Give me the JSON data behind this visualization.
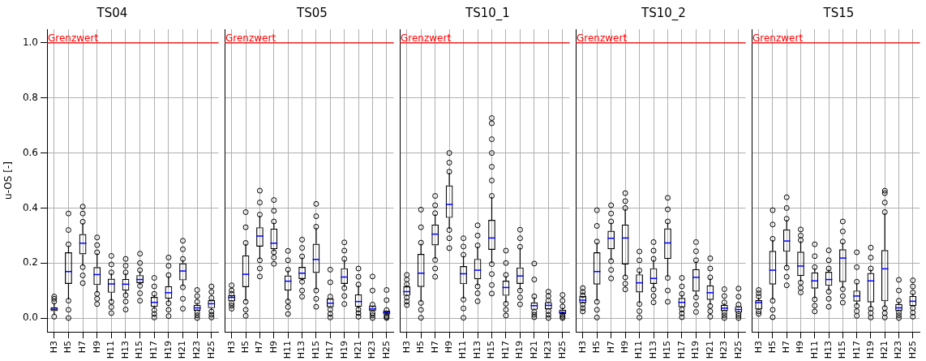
{
  "chart_data": [
    {
      "type": "box",
      "title": "TS04",
      "ylabel": "u-OS [-]",
      "color": "#000000",
      "grid": true,
      "ylim": [
        -0.05,
        1.05
      ],
      "yticks": [
        {
          "value": 0,
          "label": "0.0"
        },
        0.2,
        0.4,
        0.6,
        0.8,
        {
          "value": 1,
          "label": "1.0"
        }
      ],
      "ref_lines": [
        {
          "axis": "y",
          "value": 1.0,
          "label": "Grenzwert",
          "color": "#ff0000"
        }
      ],
      "categories": [
        "H3",
        "H5",
        "H7",
        "H9",
        "H11",
        "H13",
        "H15",
        "H17",
        "H19",
        "H21",
        "H23",
        "H25"
      ],
      "boxes": [
        {
          "low": 0.012,
          "q1": 0.025,
          "median": 0.032,
          "q3": 0.039,
          "high": 0.055,
          "outliers": [
            0.005,
            0.06,
            0.07,
            0.078
          ]
        },
        {
          "low": 0.068,
          "q1": 0.124,
          "median": 0.169,
          "q3": 0.239,
          "high": 0.262,
          "outliers": [
            0,
            0.03,
            0.063,
            0.268,
            0.32,
            0.38
          ]
        },
        {
          "low": 0.19,
          "q1": 0.232,
          "median": 0.272,
          "q3": 0.305,
          "high": 0.345,
          "outliers": [
            0.127,
            0.155,
            0.185,
            0.35,
            0.38,
            0.405
          ]
        },
        {
          "low": 0.092,
          "q1": 0.12,
          "median": 0.158,
          "q3": 0.185,
          "high": 0.235,
          "outliers": [
            0.051,
            0.07,
            0.088,
            0.239,
            0.265,
            0.293
          ]
        },
        {
          "low": 0.062,
          "q1": 0.092,
          "median": 0.124,
          "q3": 0.143,
          "high": 0.162,
          "outliers": [
            0.018,
            0.04,
            0.059,
            0.166,
            0.195,
            0.226
          ]
        },
        {
          "low": 0.087,
          "q1": 0.1,
          "median": 0.123,
          "q3": 0.142,
          "high": 0.162,
          "outliers": [
            0.031,
            0.06,
            0.083,
            0.166,
            0.19,
            0.215
          ]
        },
        {
          "low": 0.12,
          "q1": 0.127,
          "median": 0.14,
          "q3": 0.156,
          "high": 0.17,
          "outliers": [
            0.063,
            0.09,
            0.117,
            0.174,
            0.2,
            0.234
          ]
        },
        {
          "low": 0.033,
          "q1": 0.041,
          "median": 0.057,
          "q3": 0.077,
          "high": 0.084,
          "outliers": [
            0.002,
            0.015,
            0.029,
            0.088,
            0.115,
            0.146
          ]
        },
        {
          "low": 0.058,
          "q1": 0.07,
          "median": 0.092,
          "q3": 0.116,
          "high": 0.152,
          "outliers": [
            0.007,
            0.03,
            0.054,
            0.156,
            0.19,
            0.22
          ]
        },
        {
          "low": 0.116,
          "q1": 0.137,
          "median": 0.171,
          "q3": 0.199,
          "high": 0.211,
          "outliers": [
            0.034,
            0.07,
            0.112,
            0.215,
            0.25,
            0.281
          ]
        },
        {
          "low": 0.027,
          "q1": 0.027,
          "median": 0.037,
          "q3": 0.048,
          "high": 0.055,
          "outliers": [
            0,
            0.01,
            0.02,
            0.059,
            0.08,
            0.102
          ]
        },
        {
          "low": 0.028,
          "q1": 0.036,
          "median": 0.052,
          "q3": 0.065,
          "high": 0.065,
          "outliers": [
            0.002,
            0.012,
            0.024,
            0.073,
            0.095,
            0.115
          ]
        }
      ]
    },
    {
      "type": "box",
      "title": "TS05",
      "color": "#000000",
      "grid": true,
      "tick_labels": "x",
      "ylim": [
        -0.05,
        1.05
      ],
      "yticks": [
        0,
        0.2,
        0.4,
        0.6,
        0.8,
        1
      ],
      "ref_lines": [
        {
          "axis": "y",
          "value": 1.0,
          "label": "Grenzwert",
          "color": "#ff0000"
        }
      ],
      "categories": [
        "H3",
        "H5",
        "H7",
        "H9",
        "H11",
        "H13",
        "H15",
        "H17",
        "H19",
        "H21",
        "H23",
        "H25"
      ],
      "boxes": [
        {
          "low": 0.061,
          "q1": 0.061,
          "median": 0.075,
          "q3": 0.083,
          "high": 0.083,
          "outliers": [
            0.034,
            0.045,
            0.054,
            0.088,
            0.1,
            0.119
          ]
        },
        {
          "low": 0.063,
          "q1": 0.112,
          "median": 0.159,
          "q3": 0.228,
          "high": 0.269,
          "outliers": [
            0.008,
            0.03,
            0.059,
            0.273,
            0.33,
            0.385
          ]
        },
        {
          "low": 0.214,
          "q1": 0.26,
          "median": 0.298,
          "q3": 0.33,
          "high": 0.372,
          "outliers": [
            0.151,
            0.18,
            0.21,
            0.376,
            0.42,
            0.463
          ]
        },
        {
          "low": 0.243,
          "q1": 0.25,
          "median": 0.272,
          "q3": 0.325,
          "high": 0.347,
          "outliers": [
            0.197,
            0.22,
            0.239,
            0.351,
            0.39,
            0.429
          ]
        },
        {
          "low": 0.064,
          "q1": 0.1,
          "median": 0.134,
          "q3": 0.155,
          "high": 0.172,
          "outliers": [
            0.015,
            0.04,
            0.06,
            0.176,
            0.21,
            0.244
          ]
        },
        {
          "low": 0.136,
          "q1": 0.142,
          "median": 0.163,
          "q3": 0.186,
          "high": 0.22,
          "outliers": [
            0.078,
            0.1,
            0.132,
            0.224,
            0.255,
            0.285
          ]
        },
        {
          "low": 0.104,
          "q1": 0.164,
          "median": 0.213,
          "q3": 0.27,
          "high": 0.328,
          "outliers": [
            0.041,
            0.07,
            0.1,
            0.332,
            0.37,
            0.415
          ]
        },
        {
          "low": 0.039,
          "q1": 0.039,
          "median": 0.054,
          "q3": 0.071,
          "high": 0.071,
          "outliers": [
            0.002,
            0.015,
            0.031,
            0.078,
            0.13,
            0.176
          ]
        },
        {
          "low": 0.113,
          "q1": 0.124,
          "median": 0.149,
          "q3": 0.181,
          "high": 0.211,
          "outliers": [
            0.051,
            0.08,
            0.109,
            0.215,
            0.245,
            0.275
          ]
        },
        {
          "low": 0.035,
          "q1": 0.041,
          "median": 0.06,
          "q3": 0.086,
          "high": 0.118,
          "outliers": [
            0.005,
            0.018,
            0.031,
            0.122,
            0.15,
            0.18
          ]
        },
        {
          "low": 0.025,
          "q1": 0.025,
          "median": 0.033,
          "q3": 0.046,
          "high": 0.046,
          "outliers": [
            0,
            0.01,
            0.018,
            0.049,
            0.1,
            0.151
          ]
        },
        {
          "low": 0.013,
          "q1": 0.013,
          "median": 0.02,
          "q3": 0.027,
          "high": 0.027,
          "outliers": [
            0,
            0.004,
            0.008,
            0.029,
            0.065,
            0.102
          ]
        }
      ]
    },
    {
      "type": "box",
      "title": "TS10_1",
      "color": "#000000",
      "grid": true,
      "tick_labels": "x",
      "ylim": [
        -0.05,
        1.05
      ],
      "yticks": [
        0,
        0.2,
        0.4,
        0.6,
        0.8,
        1
      ],
      "ref_lines": [
        {
          "axis": "y",
          "value": 1.0,
          "label": "Grenzwert",
          "color": "#ff0000"
        }
      ],
      "categories": [
        "H3",
        "H5",
        "H7",
        "H9",
        "H11",
        "H13",
        "H15",
        "H17",
        "H19",
        "H21",
        "H23",
        "H25"
      ],
      "boxes": [
        {
          "low": 0.081,
          "q1": 0.081,
          "median": 0.096,
          "q3": 0.115,
          "high": 0.12,
          "outliers": [
            0.047,
            0.06,
            0.074,
            0.123,
            0.14,
            0.157
          ]
        },
        {
          "low": 0.059,
          "q1": 0.113,
          "median": 0.163,
          "q3": 0.233,
          "high": 0.27,
          "outliers": [
            0.001,
            0.03,
            0.055,
            0.274,
            0.33,
            0.394
          ]
        },
        {
          "low": 0.215,
          "q1": 0.264,
          "median": 0.305,
          "q3": 0.34,
          "high": 0.377,
          "outliers": [
            0.15,
            0.18,
            0.211,
            0.381,
            0.41,
            0.444
          ]
        },
        {
          "low": 0.324,
          "q1": 0.364,
          "median": 0.413,
          "q3": 0.482,
          "high": 0.528,
          "outliers": [
            0.254,
            0.29,
            0.32,
            0.532,
            0.565,
            0.6
          ]
        },
        {
          "low": 0.071,
          "q1": 0.123,
          "median": 0.161,
          "q3": 0.189,
          "high": 0.226,
          "outliers": [
            0.001,
            0.035,
            0.067,
            0.23,
            0.26,
            0.29
          ]
        },
        {
          "low": 0.119,
          "q1": 0.141,
          "median": 0.174,
          "q3": 0.215,
          "high": 0.26,
          "outliers": [
            0.061,
            0.09,
            0.115,
            0.264,
            0.3,
            0.337
          ]
        },
        {
          "low": 0.2,
          "q1": 0.248,
          "median": 0.291,
          "q3": 0.357,
          "high": 0.44,
          "outliers": [
            0.089,
            0.12,
            0.16,
            0.196,
            0.444,
            0.5,
            0.55,
            0.6,
            0.65,
            0.708,
            0.727
          ]
        },
        {
          "low": 0.056,
          "q1": 0.081,
          "median": 0.111,
          "q3": 0.136,
          "high": 0.153,
          "outliers": [
            0.009,
            0.03,
            0.052,
            0.157,
            0.2,
            0.245
          ]
        },
        {
          "low": 0.104,
          "q1": 0.124,
          "median": 0.153,
          "q3": 0.184,
          "high": 0.255,
          "outliers": [
            0.05,
            0.075,
            0.1,
            0.259,
            0.29,
            0.321
          ]
        },
        {
          "low": 0.03,
          "q1": 0.03,
          "median": 0.045,
          "q3": 0.057,
          "high": 0.075,
          "outliers": [
            0.003,
            0.012,
            0.022,
            0.079,
            0.14,
            0.198
          ]
        },
        {
          "low": 0.032,
          "q1": 0.032,
          "median": 0.046,
          "q3": 0.058,
          "high": 0.058,
          "outliers": [
            0,
            0.012,
            0.025,
            0.064,
            0.08,
            0.096
          ]
        },
        {
          "low": 0.015,
          "q1": 0.015,
          "median": 0.021,
          "q3": 0.03,
          "high": 0.038,
          "outliers": [
            0,
            0.005,
            0.011,
            0.042,
            0.063,
            0.084
          ]
        }
      ]
    },
    {
      "type": "box",
      "title": "TS10_2",
      "color": "#000000",
      "grid": true,
      "tick_labels": "x",
      "ylim": [
        -0.05,
        1.05
      ],
      "yticks": [
        0,
        0.2,
        0.4,
        0.6,
        0.8,
        1
      ],
      "ref_lines": [
        {
          "axis": "y",
          "value": 1.0,
          "label": "Grenzwert",
          "color": "#ff0000"
        }
      ],
      "categories": [
        "H3",
        "H5",
        "H7",
        "H9",
        "H11",
        "H13",
        "H15",
        "H17",
        "H19",
        "H21",
        "H23",
        "H25"
      ],
      "boxes": [
        {
          "low": 0.054,
          "q1": 0.054,
          "median": 0.065,
          "q3": 0.08,
          "high": 0.08,
          "outliers": [
            0.024,
            0.036,
            0.049,
            0.083,
            0.095,
            0.109
          ]
        },
        {
          "low": 0.063,
          "q1": 0.122,
          "median": 0.169,
          "q3": 0.239,
          "high": 0.274,
          "outliers": [
            0.002,
            0.03,
            0.059,
            0.278,
            0.335,
            0.392
          ]
        },
        {
          "low": 0.211,
          "q1": 0.25,
          "median": 0.29,
          "q3": 0.317,
          "high": 0.347,
          "outliers": [
            0.144,
            0.175,
            0.207,
            0.351,
            0.38,
            0.41
          ]
        },
        {
          "low": 0.152,
          "q1": 0.195,
          "median": 0.291,
          "q3": 0.34,
          "high": 0.396,
          "outliers": [
            0.104,
            0.125,
            0.148,
            0.4,
            0.425,
            0.454
          ]
        },
        {
          "low": 0.055,
          "q1": 0.093,
          "median": 0.128,
          "q3": 0.159,
          "high": 0.169,
          "outliers": [
            0.002,
            0.025,
            0.051,
            0.173,
            0.21,
            0.242
          ]
        },
        {
          "low": 0.108,
          "q1": 0.124,
          "median": 0.144,
          "q3": 0.181,
          "high": 0.211,
          "outliers": [
            0.057,
            0.08,
            0.104,
            0.215,
            0.245,
            0.276
          ]
        },
        {
          "low": 0.15,
          "q1": 0.215,
          "median": 0.273,
          "q3": 0.326,
          "high": 0.347,
          "outliers": [
            0.059,
            0.1,
            0.146,
            0.351,
            0.395,
            0.437
          ]
        },
        {
          "low": 0.039,
          "q1": 0.039,
          "median": 0.057,
          "q3": 0.073,
          "high": 0.084,
          "outliers": [
            0.003,
            0.017,
            0.031,
            0.088,
            0.115,
            0.146
          ]
        },
        {
          "low": 0.079,
          "q1": 0.096,
          "median": 0.148,
          "q3": 0.178,
          "high": 0.206,
          "outliers": [
            0.022,
            0.048,
            0.075,
            0.21,
            0.243,
            0.276
          ]
        },
        {
          "low": 0.048,
          "q1": 0.066,
          "median": 0.092,
          "q3": 0.119,
          "high": 0.144,
          "outliers": [
            0.005,
            0.025,
            0.044,
            0.148,
            0.18,
            0.217
          ]
        },
        {
          "low": 0.025,
          "q1": 0.025,
          "median": 0.036,
          "q3": 0.048,
          "high": 0.053,
          "outliers": [
            0,
            0.01,
            0.02,
            0.057,
            0.08,
            0.105
          ]
        },
        {
          "low": 0.02,
          "q1": 0.02,
          "median": 0.031,
          "q3": 0.043,
          "high": 0.043,
          "outliers": [
            0,
            0.008,
            0.015,
            0.049,
            0.078,
            0.107
          ]
        }
      ]
    },
    {
      "type": "box",
      "title": "TS15",
      "color": "#000000",
      "grid": true,
      "tick_labels": "x",
      "ylim": [
        -0.05,
        1.05
      ],
      "yticks": [
        0,
        0.2,
        0.4,
        0.6,
        0.8,
        1
      ],
      "ref_lines": [
        {
          "axis": "y",
          "value": 1.0,
          "label": "Grenzwert",
          "color": "#ff0000"
        }
      ],
      "categories": [
        "H3",
        "H5",
        "H7",
        "H9",
        "H11",
        "H13",
        "H15",
        "H17",
        "H19",
        "H21",
        "H23",
        "H25"
      ],
      "boxes": [
        {
          "low": 0.031,
          "q1": 0.031,
          "median": 0.056,
          "q3": 0.065,
          "high": 0.074,
          "outliers": [
            0.015,
            0.024,
            0.078,
            0.09,
            0.102
          ]
        },
        {
          "low": 0.067,
          "q1": 0.122,
          "median": 0.174,
          "q3": 0.244,
          "high": 0.284,
          "outliers": [
            0.003,
            0.03,
            0.063,
            0.288,
            0.34,
            0.392
          ]
        },
        {
          "low": 0.187,
          "q1": 0.241,
          "median": 0.28,
          "q3": 0.322,
          "high": 0.357,
          "outliers": [
            0.119,
            0.15,
            0.183,
            0.361,
            0.4,
            0.439
          ]
        },
        {
          "low": 0.133,
          "q1": 0.153,
          "median": 0.189,
          "q3": 0.241,
          "high": 0.279,
          "outliers": [
            0.093,
            0.11,
            0.129,
            0.283,
            0.3,
            0.322
          ]
        },
        {
          "low": 0.072,
          "q1": 0.107,
          "median": 0.135,
          "q3": 0.166,
          "high": 0.181,
          "outliers": [
            0.024,
            0.045,
            0.068,
            0.185,
            0.225,
            0.268
          ]
        },
        {
          "low": 0.1,
          "q1": 0.117,
          "median": 0.14,
          "q3": 0.168,
          "high": 0.176,
          "outliers": [
            0.041,
            0.07,
            0.096,
            0.18,
            0.21,
            0.246
          ]
        },
        {
          "low": 0.109,
          "q1": 0.131,
          "median": 0.218,
          "q3": 0.25,
          "high": 0.274,
          "outliers": [
            0.056,
            0.08,
            0.105,
            0.278,
            0.315,
            0.351
          ]
        },
        {
          "low": 0.048,
          "q1": 0.06,
          "median": 0.08,
          "q3": 0.1,
          "high": 0.128,
          "outliers": [
            0.008,
            0.025,
            0.044,
            0.132,
            0.185,
            0.239
          ]
        },
        {
          "low": 0.038,
          "q1": 0.057,
          "median": 0.135,
          "q3": 0.164,
          "high": 0.176,
          "outliers": [
            0.002,
            0.018,
            0.034,
            0.18,
            0.22,
            0.256
          ]
        },
        {
          "low": 0.04,
          "q1": 0.061,
          "median": 0.179,
          "q3": 0.247,
          "high": 0.381,
          "outliers": [
            0.002,
            0.018,
            0.036,
            0.385,
            0.42,
            0.454,
            0.463
          ]
        },
        {
          "low": 0.024,
          "q1": 0.025,
          "median": 0.037,
          "q3": 0.051,
          "high": 0.059,
          "outliers": [
            0,
            0.01,
            0.02,
            0.063,
            0.1,
            0.139
          ]
        },
        {
          "low": 0.044,
          "q1": 0.044,
          "median": 0.061,
          "q3": 0.08,
          "high": 0.089,
          "outliers": [
            0.005,
            0.02,
            0.036,
            0.093,
            0.115,
            0.137
          ]
        }
      ]
    }
  ]
}
